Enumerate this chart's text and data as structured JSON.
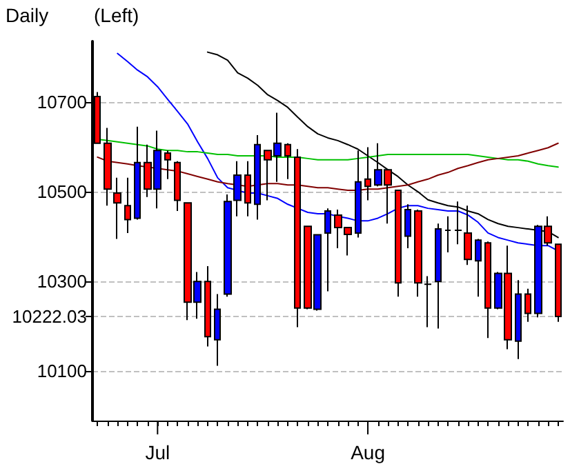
{
  "chart_data": {
    "type": "candlestick",
    "annotations": [
      "Daily",
      "(Left)"
    ],
    "categories": [
      null,
      null,
      null,
      null,
      null,
      null,
      "Jul",
      null,
      null,
      null,
      null,
      null,
      null,
      null,
      null,
      null,
      null,
      null,
      null,
      null,
      null,
      null,
      null,
      null,
      null,
      null,
      null,
      "Aug",
      null,
      null,
      null,
      null,
      null,
      null,
      null,
      null,
      null,
      null,
      null,
      null,
      null,
      null,
      null,
      null,
      null,
      null,
      null
    ],
    "ohlc": [
      [
        10712,
        10722,
        10608,
        10608
      ],
      [
        10608,
        10642,
        10469,
        10506
      ],
      [
        10497,
        10531,
        10395,
        10475
      ],
      [
        10469,
        10531,
        10408,
        10438
      ],
      [
        10441,
        10645,
        10438,
        10565
      ],
      [
        10565,
        10605,
        10488,
        10506
      ],
      [
        10506,
        10636,
        10463,
        10592
      ],
      [
        10586,
        10592,
        10528,
        10571
      ],
      [
        10565,
        10568,
        10457,
        10481
      ],
      [
        10475,
        10475,
        10214,
        10254
      ],
      [
        10254,
        10321,
        10217,
        10300
      ],
      [
        10300,
        10334,
        10155,
        10177
      ],
      [
        10170,
        10272,
        10112,
        10238
      ],
      [
        10272,
        10494,
        10266,
        10478
      ],
      [
        10481,
        10568,
        10445,
        10537
      ],
      [
        10537,
        10568,
        10445,
        10475
      ],
      [
        10472,
        10626,
        10438,
        10605
      ],
      [
        10592,
        10592,
        10481,
        10571
      ],
      [
        10580,
        10676,
        10522,
        10608
      ],
      [
        10605,
        10608,
        10528,
        10580
      ],
      [
        10577,
        10595,
        10198,
        10241
      ],
      [
        10423,
        10423,
        10238,
        10241
      ],
      [
        10238,
        10404,
        10235,
        10404
      ],
      [
        10408,
        10463,
        10278,
        10457
      ],
      [
        10448,
        10460,
        10374,
        10420
      ],
      [
        10420,
        10420,
        10358,
        10405
      ],
      [
        10408,
        10592,
        10398,
        10522
      ],
      [
        10528,
        10599,
        10481,
        10512
      ],
      [
        10515,
        10608,
        10512,
        10549
      ],
      [
        10549,
        10549,
        10429,
        10515
      ],
      [
        10503,
        10503,
        10266,
        10297
      ],
      [
        10401,
        10472,
        10374,
        10460
      ],
      [
        10457,
        10460,
        10266,
        10297
      ],
      [
        10294,
        10312,
        10198,
        10294
      ],
      [
        10300,
        10429,
        10195,
        10417
      ],
      [
        10414,
        10445,
        10365,
        10414
      ],
      [
        10414,
        10478,
        10383,
        10414
      ],
      [
        10408,
        10469,
        10337,
        10349
      ],
      [
        10346,
        10395,
        10266,
        10392
      ],
      [
        10386,
        10389,
        10174,
        10241
      ],
      [
        10241,
        10321,
        10238,
        10318
      ],
      [
        10318,
        10380,
        10149,
        10170
      ],
      [
        10167,
        10303,
        10127,
        10272
      ],
      [
        10272,
        10284,
        10210,
        10229
      ],
      [
        10229,
        10426,
        10220,
        10423
      ],
      [
        10423,
        10445,
        10380,
        10386
      ],
      [
        10383,
        10383,
        10210,
        10222.03
      ]
    ],
    "colors": [
      "#ff0000",
      "#ff0000",
      "#ff0000",
      "#ff0000",
      "#0000ff",
      "#ff0000",
      "#0000ff",
      "#ff0000",
      "#ff0000",
      "#ff0000",
      "#0000ff",
      "#ff0000",
      "#0000ff",
      "#0000ff",
      "#0000ff",
      "#ff0000",
      "#0000ff",
      "#ff0000",
      "#0000ff",
      "#ff0000",
      "#ff0000",
      "#ff0000",
      "#0000ff",
      "#0000ff",
      "#ff0000",
      "#ff0000",
      "#0000ff",
      "#ff0000",
      "#0000ff",
      "#ff0000",
      "#ff0000",
      "#0000ff",
      "#ff0000",
      "#000000",
      "#0000ff",
      "#000000",
      "#000000",
      "#ff0000",
      "#0000ff",
      "#ff0000",
      "#0000ff",
      "#ff0000",
      "#0000ff",
      "#ff0000",
      "#0000ff",
      "#ff0000",
      "#ff0000"
    ],
    "series": [
      {
        "type": "line",
        "color": "#000000",
        "values": [
          null,
          null,
          null,
          null,
          null,
          null,
          null,
          null,
          null,
          null,
          null,
          10811,
          10805,
          10793,
          10765,
          10753,
          10737,
          10716,
          10703,
          10688,
          10666,
          10645,
          10629,
          10620,
          10614,
          10605,
          10595,
          10580,
          10565,
          10549,
          10534,
          10515,
          10500,
          10482,
          10475,
          10469,
          10466,
          10457,
          10451,
          10438,
          10429,
          10423,
          10420,
          10417,
          10414,
          10411,
          10398
        ]
      },
      {
        "type": "line",
        "color": "#0000ff",
        "values": [
          null,
          null,
          10808,
          10790,
          10771,
          10756,
          10734,
          10706,
          10679,
          10651,
          10611,
          10574,
          10531,
          10509,
          10503,
          10497,
          10497,
          10491,
          10485,
          10472,
          10463,
          10454,
          10451,
          10451,
          10445,
          10441,
          10435,
          10435,
          10441,
          10451,
          10463,
          10469,
          10469,
          10463,
          10460,
          10457,
          10457,
          10448,
          10432,
          10408,
          10398,
          10392,
          10386,
          10383,
          10380,
          10380,
          10368
        ]
      },
      {
        "type": "line",
        "color": "#00c000",
        "values": [
          10617,
          10614,
          10611,
          10608,
          10605,
          10602,
          10595,
          10592,
          10592,
          10589,
          10589,
          10586,
          10583,
          10583,
          10580,
          10580,
          10580,
          10580,
          10577,
          10577,
          10577,
          10574,
          10571,
          10571,
          10571,
          10571,
          10574,
          10577,
          10580,
          10583,
          10583,
          10583,
          10583,
          10583,
          10583,
          10583,
          10583,
          10583,
          10580,
          10577,
          10574,
          10571,
          10571,
          10568,
          10562,
          10558,
          10555
        ]
      },
      {
        "type": "line",
        "color": "#800000",
        "values": [
          10577,
          10568,
          10565,
          10562,
          10558,
          10555,
          10552,
          10549,
          10546,
          10540,
          10534,
          10528,
          10522,
          10518,
          10515,
          10512,
          10515,
          10518,
          10518,
          10515,
          10515,
          10512,
          10509,
          10509,
          10506,
          10503,
          10503,
          10506,
          10506,
          10509,
          10512,
          10515,
          10522,
          10528,
          10537,
          10543,
          10552,
          10558,
          10565,
          10571,
          10574,
          10577,
          10580,
          10586,
          10592,
          10598,
          10608
        ]
      }
    ],
    "ylim": [
      9990,
      10835
    ],
    "yticks": [
      10100,
      10222.03,
      10300,
      10500,
      10700
    ],
    "grid": "y",
    "line_style": "solid",
    "marker": "none"
  }
}
